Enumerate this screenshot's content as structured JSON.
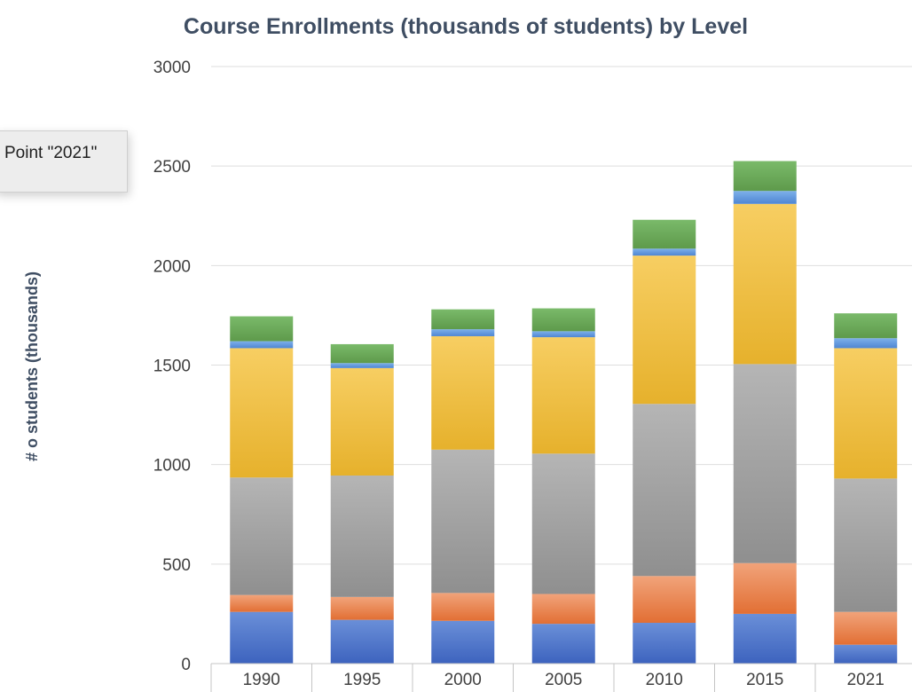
{
  "tooltip": {
    "text": "Point \"2021\""
  },
  "colors": {
    "segments": [
      [
        "#6a8fd8",
        "#3d63be"
      ],
      [
        "#f1a37a",
        "#e26f34"
      ],
      [
        "#b5b5b5",
        "#8f8f8f"
      ],
      [
        "#f7ce62",
        "#e6b12c"
      ],
      [
        "#7aba6a",
        "#5e9a4b"
      ]
    ],
    "thin_segment": [
      "#7db0ea",
      "#4f86d2"
    ],
    "gridline": "#dedede",
    "baseline": "#c4c4c4"
  },
  "chart_data": {
    "type": "bar",
    "stacked": true,
    "title": "Course Enrollments (thousands of students) by Level",
    "xlabel": "",
    "ylabel": "# o students (thousands)",
    "ylim": [
      0,
      3000
    ],
    "yticks": [
      0,
      500,
      1000,
      1500,
      2000,
      2500,
      3000
    ],
    "grid": true,
    "categories": [
      "1990",
      "1995",
      "2000",
      "2005",
      "2010",
      "2015",
      "2021"
    ],
    "series": [
      {
        "values": [
          260,
          220,
          215,
          200,
          205,
          250,
          95
        ]
      },
      {
        "values": [
          85,
          115,
          140,
          150,
          235,
          255,
          165
        ]
      },
      {
        "values": [
          590,
          610,
          720,
          705,
          865,
          1000,
          670
        ]
      },
      {
        "values": [
          650,
          540,
          570,
          585,
          745,
          805,
          655
        ]
      },
      {
        "values": [
          35,
          25,
          35,
          30,
          35,
          65,
          50
        ]
      },
      {
        "values": [
          125,
          95,
          100,
          115,
          145,
          150,
          125
        ]
      }
    ]
  }
}
